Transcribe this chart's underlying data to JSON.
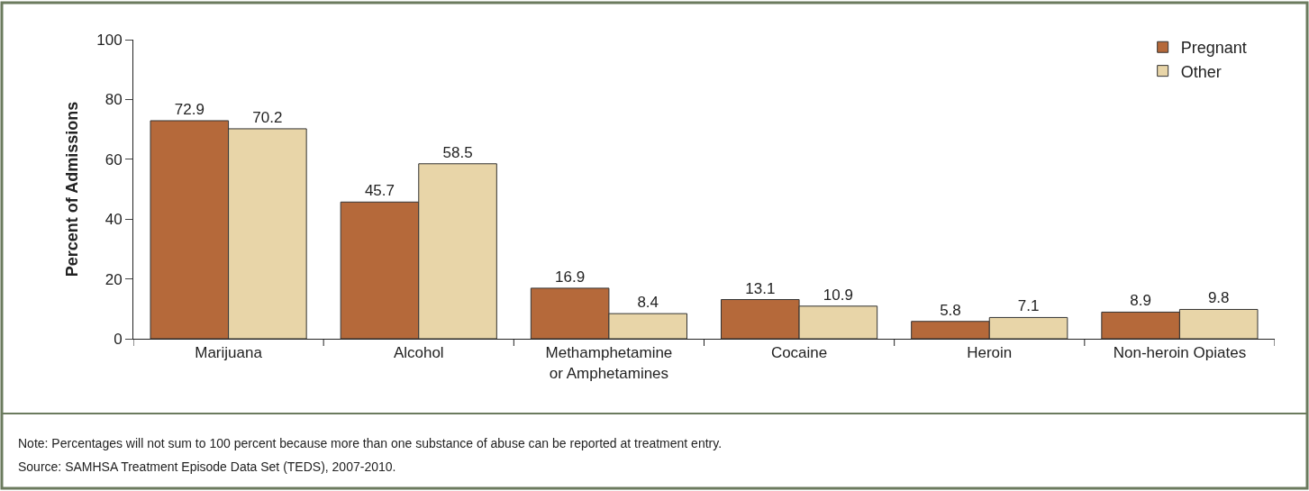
{
  "chart_data": {
    "type": "bar",
    "ylabel": "Percent of Admissions",
    "categories": [
      "Marijuana",
      "Alcohol",
      "Methamphetamine or Amphetamines",
      "Cocaine",
      "Heroin",
      "Non-heroin Opiates"
    ],
    "series": [
      {
        "name": "Pregnant",
        "color": "#b5693a",
        "values": [
          72.9,
          45.7,
          16.9,
          13.1,
          5.8,
          8.9
        ]
      },
      {
        "name": "Other",
        "color": "#e8d5a8",
        "values": [
          70.2,
          58.5,
          8.4,
          10.9,
          7.1,
          9.8
        ]
      }
    ],
    "ylim": [
      0,
      100
    ],
    "yticks": [
      0,
      20,
      40,
      60,
      80,
      100
    ],
    "data_labels": true,
    "legend": "top right",
    "annotations": [
      "Note: Percentages will not sum to 100 percent because more than one substance of abuse can be reported at treatment entry.",
      "Source: SAMHSA Treatment Episode Data Set (TEDS), 2007-2010."
    ]
  }
}
